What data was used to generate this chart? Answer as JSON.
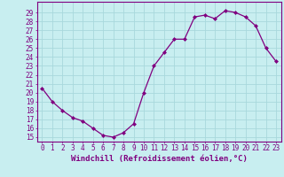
{
  "x": [
    0,
    1,
    2,
    3,
    4,
    5,
    6,
    7,
    8,
    9,
    10,
    11,
    12,
    13,
    14,
    15,
    16,
    17,
    18,
    19,
    20,
    21,
    22,
    23
  ],
  "y": [
    20.5,
    19.0,
    18.0,
    17.2,
    16.8,
    16.0,
    15.2,
    15.0,
    15.5,
    16.5,
    20.0,
    23.0,
    24.5,
    26.0,
    26.0,
    28.5,
    28.7,
    28.3,
    29.2,
    29.0,
    28.5,
    27.5,
    25.0,
    23.5
  ],
  "line_color": "#800080",
  "marker": "D",
  "marker_size": 2.0,
  "bg_color": "#c8eef0",
  "grid_color": "#a8d8dc",
  "xlabel": "Windchill (Refroidissement éolien,°C)",
  "ylim": [
    14.5,
    30.2
  ],
  "xlim": [
    -0.5,
    23.5
  ],
  "yticks": [
    15,
    16,
    17,
    18,
    19,
    20,
    21,
    22,
    23,
    24,
    25,
    26,
    27,
    28,
    29
  ],
  "xticks": [
    0,
    1,
    2,
    3,
    4,
    5,
    6,
    7,
    8,
    9,
    10,
    11,
    12,
    13,
    14,
    15,
    16,
    17,
    18,
    19,
    20,
    21,
    22,
    23
  ],
  "tick_fontsize": 5.5,
  "xlabel_fontsize": 6.5,
  "linewidth": 0.9
}
